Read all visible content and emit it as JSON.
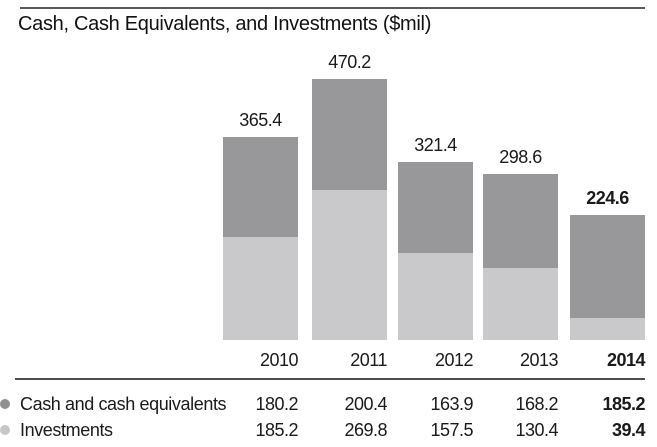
{
  "title": "Cash, Cash Equivalents, and Investments ($mil)",
  "chart_data": {
    "type": "bar",
    "stacked": true,
    "title": "Cash, Cash Equivalents, and Investments ($mil)",
    "categories": [
      "2010",
      "2011",
      "2012",
      "2013",
      "2014"
    ],
    "series": [
      {
        "name": "Cash and cash equivalents",
        "values": [
          180.2,
          200.4,
          163.9,
          168.2,
          185.2
        ],
        "color": "#98989a",
        "position": "top"
      },
      {
        "name": "Investments",
        "values": [
          185.2,
          269.8,
          157.5,
          130.4,
          39.4
        ],
        "color": "#c9c9cb",
        "position": "bottom"
      }
    ],
    "totals": [
      365.4,
      470.2,
      321.4,
      298.6,
      224.6
    ],
    "xlabel": "",
    "ylabel": "$mil",
    "ylim": [
      0,
      470.2
    ],
    "grid": false,
    "axis_lines": "none",
    "value_labels": "totals-above-bars",
    "legend_position": "table-below",
    "highlight_category": "2014"
  },
  "table": {
    "header": [
      "2010",
      "2011",
      "2012",
      "2013",
      "2014"
    ],
    "rows": [
      {
        "label": "Cash and cash equivalents",
        "bullet_color": "#8f8f91",
        "values": [
          "180.2",
          "200.4",
          "163.9",
          "168.2",
          "185.2"
        ]
      },
      {
        "label": "Investments",
        "bullet_color": "#c6c6c8",
        "values": [
          "185.2",
          "269.8",
          "157.5",
          "130.4",
          "39.4"
        ]
      }
    ],
    "bold_column": "2014"
  },
  "colors": {
    "bar_dark": "#98989a",
    "bar_light": "#c9c9cb",
    "text": "#1a1a1a"
  }
}
